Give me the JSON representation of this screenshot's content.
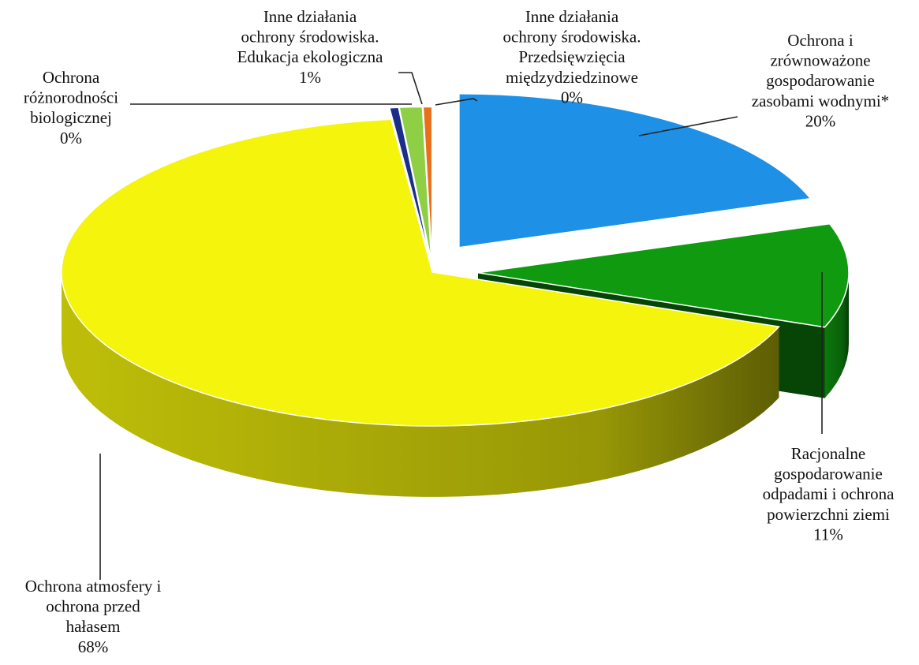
{
  "chart_data": {
    "type": "pie",
    "title": "",
    "categories": [
      "Ochrona i zrównoważone gospodarowanie zasobami wodnymi*",
      "Racjonalne gospodarowanie odpadami i ochrona powierzchni ziemi",
      "Ochrona atmosfery i ochrona przed hałasem",
      "Ochrona różnorodności biologicznej",
      "Inne działania ochrony środowiska. Edukacja ekologiczna",
      "Inne działania ochrony środowiska. Przedsięwzięcia międzydziedzinowe"
    ],
    "values": [
      20,
      11,
      68,
      0,
      1,
      0
    ],
    "value_labels": [
      "20%",
      "11%",
      "68%",
      "0%",
      "1%",
      "0%"
    ],
    "label_lines": [
      [
        "Ochrona i",
        "zrównoważone",
        "gospodarowanie",
        "zasobami wodnymi*",
        "20%"
      ],
      [
        "Racjonalne",
        "gospodarowanie",
        "odpadami i ochrona",
        "powierzchni ziemi",
        "11%"
      ],
      [
        "Ochrona atmosfery i",
        "ochrona przed",
        "hałasem",
        "68%"
      ],
      [
        "Ochrona",
        "różnorodności",
        "biologicznej",
        "0%"
      ],
      [
        "Inne działania",
        "ochrony środowiska.",
        "Edukacja ekologiczna",
        "1%"
      ],
      [
        "Inne działania",
        "ochrony środowiska.",
        "Przedsięwzięcia",
        "międzydziedzinowe",
        "0%"
      ]
    ],
    "colors": [
      "#1e90e6",
      "#0f9a0f",
      "#f4f40c",
      "#1b2f8a",
      "#8ecf46",
      "#e8701c"
    ],
    "style": "3d-exploded"
  }
}
